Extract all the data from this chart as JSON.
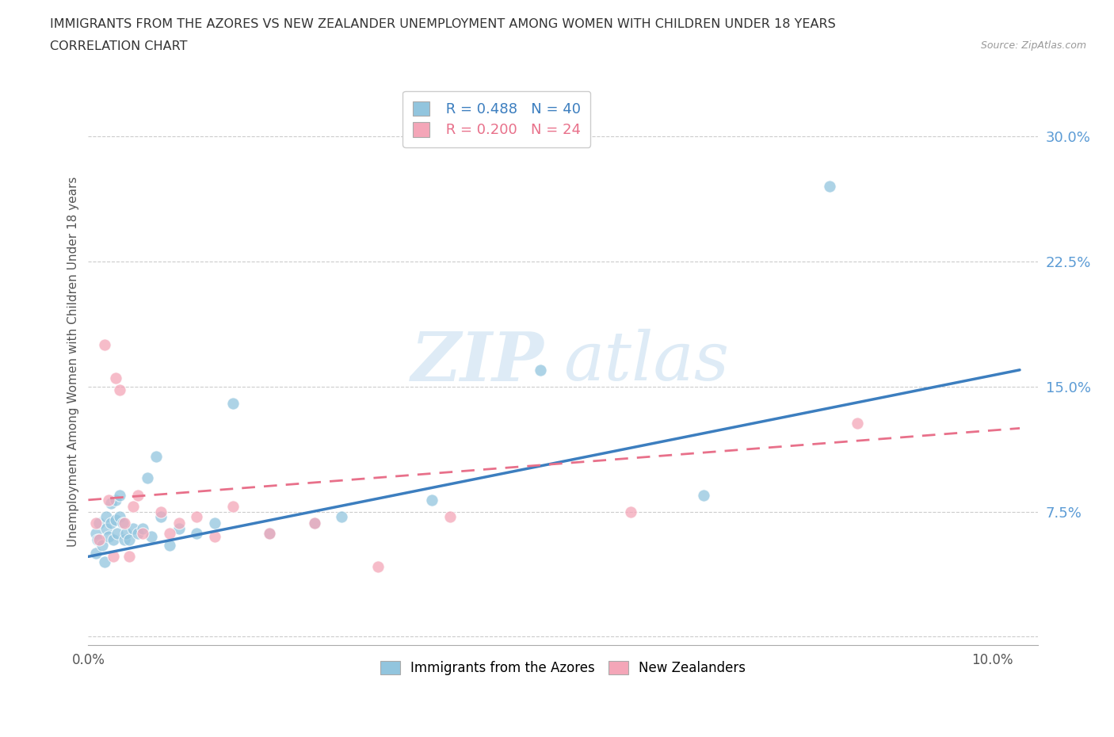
{
  "title_line1": "IMMIGRANTS FROM THE AZORES VS NEW ZEALANDER UNEMPLOYMENT AMONG WOMEN WITH CHILDREN UNDER 18 YEARS",
  "title_line2": "CORRELATION CHART",
  "source": "Source: ZipAtlas.com",
  "ylabel": "Unemployment Among Women with Children Under 18 years",
  "xlim": [
    0.0,
    0.105
  ],
  "ylim": [
    -0.005,
    0.335
  ],
  "yticks": [
    0.0,
    0.075,
    0.15,
    0.225,
    0.3
  ],
  "ytick_labels": [
    "",
    "7.5%",
    "15.0%",
    "22.5%",
    "30.0%"
  ],
  "xticks": [
    0.0,
    0.01,
    0.02,
    0.03,
    0.04,
    0.05,
    0.06,
    0.07,
    0.08,
    0.09,
    0.1
  ],
  "xtick_labels": [
    "0.0%",
    "",
    "",
    "",
    "",
    "",
    "",
    "",
    "",
    "",
    "10.0%"
  ],
  "blue_R": 0.488,
  "blue_N": 40,
  "pink_R": 0.2,
  "pink_N": 24,
  "blue_color": "#92c5de",
  "pink_color": "#f4a6b8",
  "blue_line_color": "#3c7ebf",
  "pink_line_color": "#e8708a",
  "watermark_zip": "ZIP",
  "watermark_atlas": "atlas",
  "legend_label_blue": "Immigrants from the Azores",
  "legend_label_pink": "New Zealanders",
  "blue_scatter_x": [
    0.0008,
    0.0008,
    0.001,
    0.0012,
    0.0015,
    0.0018,
    0.002,
    0.002,
    0.0022,
    0.0025,
    0.0025,
    0.0028,
    0.003,
    0.003,
    0.0032,
    0.0035,
    0.0035,
    0.0038,
    0.004,
    0.0042,
    0.0045,
    0.005,
    0.0055,
    0.006,
    0.0065,
    0.007,
    0.0075,
    0.008,
    0.009,
    0.01,
    0.012,
    0.014,
    0.016,
    0.02,
    0.025,
    0.028,
    0.038,
    0.05,
    0.068,
    0.082
  ],
  "blue_scatter_y": [
    0.05,
    0.062,
    0.058,
    0.068,
    0.055,
    0.045,
    0.065,
    0.072,
    0.06,
    0.068,
    0.08,
    0.058,
    0.07,
    0.082,
    0.062,
    0.072,
    0.085,
    0.068,
    0.058,
    0.062,
    0.058,
    0.065,
    0.062,
    0.065,
    0.095,
    0.06,
    0.108,
    0.072,
    0.055,
    0.065,
    0.062,
    0.068,
    0.14,
    0.062,
    0.068,
    0.072,
    0.082,
    0.16,
    0.085,
    0.27
  ],
  "pink_scatter_x": [
    0.0008,
    0.0012,
    0.0018,
    0.0022,
    0.0028,
    0.003,
    0.0035,
    0.004,
    0.0045,
    0.005,
    0.0055,
    0.006,
    0.008,
    0.009,
    0.01,
    0.012,
    0.014,
    0.016,
    0.02,
    0.025,
    0.032,
    0.04,
    0.06,
    0.085
  ],
  "pink_scatter_y": [
    0.068,
    0.058,
    0.175,
    0.082,
    0.048,
    0.155,
    0.148,
    0.068,
    0.048,
    0.078,
    0.085,
    0.062,
    0.075,
    0.062,
    0.068,
    0.072,
    0.06,
    0.078,
    0.062,
    0.068,
    0.042,
    0.072,
    0.075,
    0.128
  ],
  "blue_trend_x": [
    0.0,
    0.103
  ],
  "blue_trend_y": [
    0.048,
    0.16
  ],
  "pink_trend_x": [
    0.0,
    0.103
  ],
  "pink_trend_y": [
    0.082,
    0.125
  ]
}
